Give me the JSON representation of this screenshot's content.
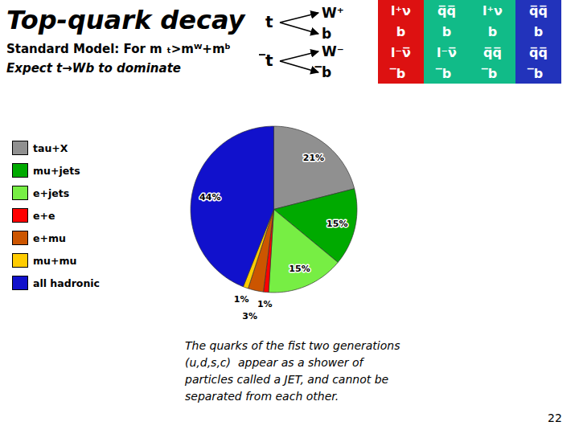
{
  "chart_data": {
    "type": "pie",
    "title": "Top-quark decay",
    "subtitle": [
      "Standard Model: For m ₜ>mᵂ+mᵇ",
      "Expect t→Wb to dominate"
    ],
    "categories": [
      "tau+X",
      "mu+jets",
      "e+jets",
      "e+e",
      "e+mu",
      "mu+mu",
      "all hadronic"
    ],
    "values": [
      21,
      15,
      15,
      1,
      3,
      1,
      44
    ],
    "value_labels": [
      "21%",
      "15%",
      "15%",
      "1%",
      "3%",
      "1%",
      "44%"
    ],
    "colors": [
      "#909090",
      "#00AA00",
      "#77EE44",
      "#FF0000",
      "#CC5500",
      "#FFCC00",
      "#1111CC"
    ],
    "data_labels": true,
    "legend": "left",
    "annotations": [
      "The quarks of the fist two generations\n(u,d,s,c)  appear as a shower of\nparticles called a JET, and cannot be\nseparated from each other.",
      "22"
    ],
    "diagram": [
      [
        "t",
        "W⁺",
        "b"
      ],
      [
        "̅t",
        "W⁻",
        "̅b"
      ]
    ],
    "table": {
      "colors": [
        "#DD1111",
        "#11BB88",
        "#11BB88",
        "#2233BB"
      ],
      "cells": [
        [
          [
            "l⁺ν",
            "b"
          ],
          [
            "q̅q̅",
            "b"
          ],
          [
            "l⁺ν",
            "b"
          ],
          [
            "q̅q̅",
            "b"
          ]
        ],
        [
          [
            "l⁻ν̅",
            "̅b"
          ],
          [
            "l⁻ν̅",
            "̅b"
          ],
          [
            "q̅q̅",
            "̅b"
          ],
          [
            "q̅q̅",
            "̅b"
          ]
        ]
      ]
    }
  }
}
